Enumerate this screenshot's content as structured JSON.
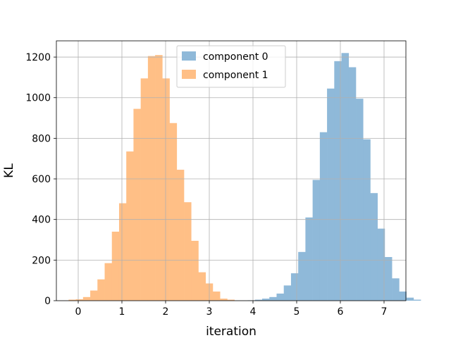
{
  "chart_data": {
    "type": "histogram",
    "xlabel": "iteration",
    "ylabel": "KL",
    "xlim": [
      -0.5,
      7.5
    ],
    "ylim": [
      0,
      1280
    ],
    "xticks": [
      0,
      1,
      2,
      3,
      4,
      5,
      6,
      7
    ],
    "yticks": [
      0,
      200,
      400,
      600,
      800,
      1000,
      1200
    ],
    "grid": true,
    "legend_position": "top-center",
    "series": [
      {
        "name": "component 0",
        "color": "#8fb9d9",
        "bin_start": 3.88,
        "bin_width": 0.165,
        "counts": [
          2,
          5,
          10,
          18,
          35,
          75,
          135,
          240,
          410,
          595,
          830,
          1045,
          1180,
          1220,
          1150,
          995,
          795,
          530,
          355,
          215,
          110,
          45,
          15,
          5
        ]
      },
      {
        "name": "component 1",
        "color": "#ffbf86",
        "bin_start": -0.22,
        "bin_width": 0.165,
        "counts": [
          5,
          7,
          18,
          50,
          105,
          185,
          340,
          480,
          735,
          945,
          1095,
          1205,
          1210,
          1095,
          875,
          645,
          485,
          295,
          140,
          85,
          45,
          10,
          5
        ]
      }
    ]
  }
}
